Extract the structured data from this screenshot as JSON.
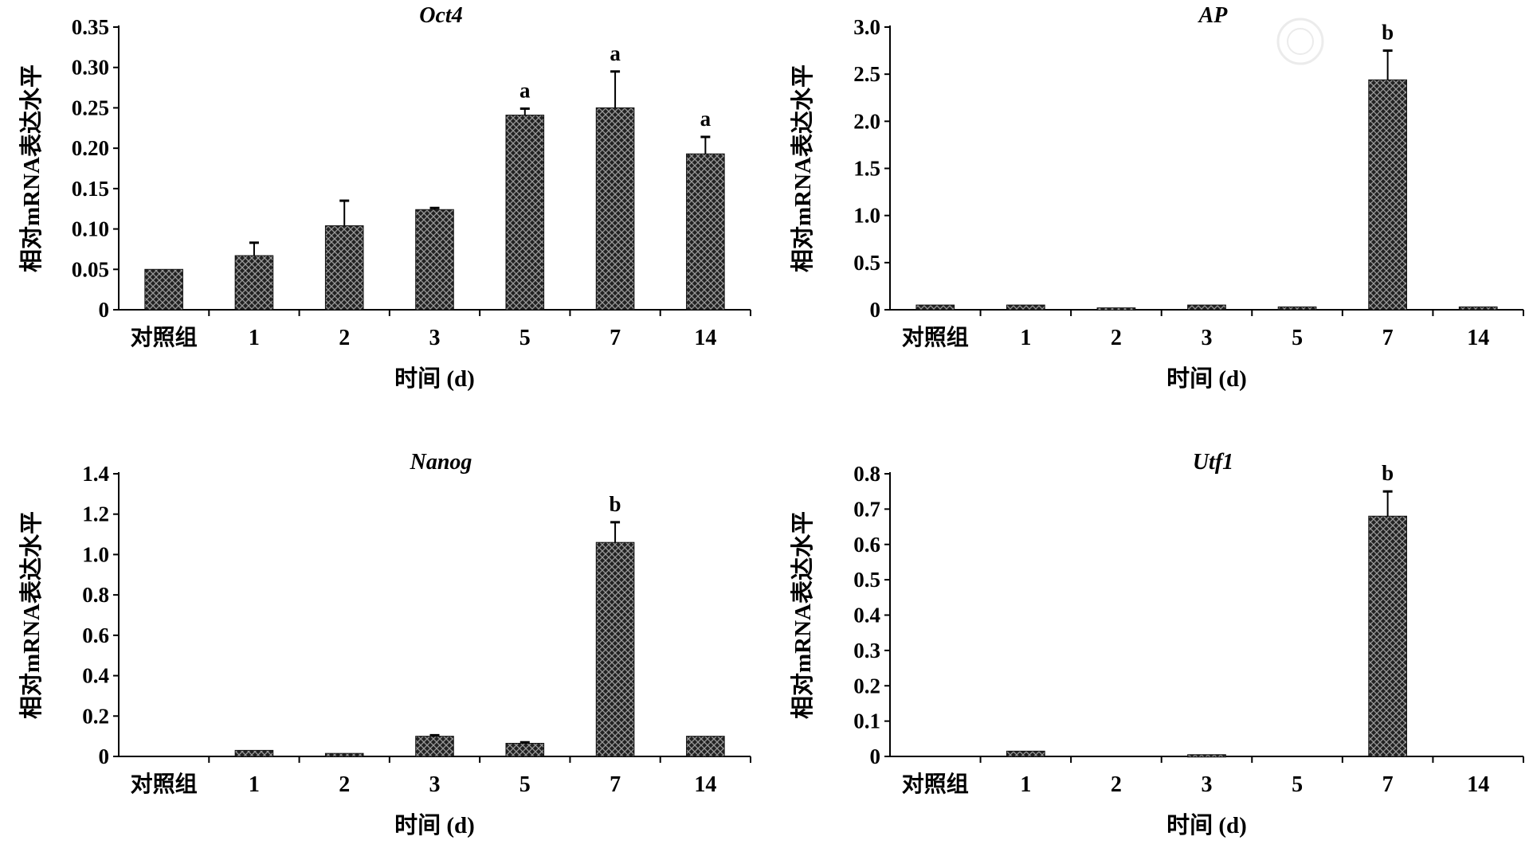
{
  "chart_data": [
    {
      "type": "bar",
      "title": "Oct4",
      "xlabel": "时间 (d)",
      "ylabel": "相对mRNA表达水平",
      "categories": [
        "对照组",
        "1",
        "2",
        "3",
        "5",
        "7",
        "14"
      ],
      "values": [
        0.05,
        0.067,
        0.104,
        0.124,
        0.241,
        0.25,
        0.193
      ],
      "error_upper": [
        0.05,
        0.083,
        0.135,
        0.126,
        0.249,
        0.295,
        0.214
      ],
      "significance": [
        "",
        "",
        "",
        "",
        "a",
        "a",
        "a"
      ],
      "ylim": [
        0,
        0.35
      ],
      "yticks": [
        "0",
        "0.05",
        "0.10",
        "0.15",
        "0.20",
        "0.25",
        "0.30",
        "0.35"
      ],
      "grid": false
    },
    {
      "type": "bar",
      "title": "AP",
      "xlabel": "时间 (d)",
      "ylabel": "相对mRNA表达水平",
      "categories": [
        "对照组",
        "1",
        "2",
        "3",
        "5",
        "7",
        "14"
      ],
      "values": [
        0.05,
        0.05,
        0.02,
        0.05,
        0.03,
        2.44,
        0.03
      ],
      "error_upper": [
        0.05,
        0.05,
        0.02,
        0.05,
        0.03,
        2.75,
        0.03
      ],
      "significance": [
        "",
        "",
        "",
        "",
        "",
        "b",
        ""
      ],
      "ylim": [
        0,
        3.0
      ],
      "yticks": [
        "0",
        "0.5",
        "1.0",
        "1.5",
        "2.0",
        "2.5",
        "3.0"
      ],
      "grid": false
    },
    {
      "type": "bar",
      "title": "Nanog",
      "xlabel": "时间 (d)",
      "ylabel": "相对mRNA表达水平",
      "categories": [
        "对照组",
        "1",
        "2",
        "3",
        "5",
        "7",
        "14"
      ],
      "values": [
        0,
        0.03,
        0.015,
        0.1,
        0.065,
        1.06,
        0.1
      ],
      "error_upper": [
        0,
        0.03,
        0.015,
        0.105,
        0.07,
        1.16,
        0.1
      ],
      "significance": [
        "",
        "",
        "",
        "",
        "",
        "b",
        ""
      ],
      "ylim": [
        0,
        1.4
      ],
      "yticks": [
        "0",
        "0.2",
        "0.4",
        "0.6",
        "0.8",
        "1.0",
        "1.2",
        "1.4"
      ],
      "grid": false
    },
    {
      "type": "bar",
      "title": "Utf1",
      "xlabel": "时间 (d)",
      "ylabel": "相对mRNA表达水平",
      "categories": [
        "对照组",
        "1",
        "2",
        "3",
        "5",
        "7",
        "14"
      ],
      "values": [
        0,
        0.015,
        0,
        0.005,
        0,
        0.68,
        0
      ],
      "error_upper": [
        0,
        0.015,
        0,
        0.005,
        0,
        0.75,
        0
      ],
      "significance": [
        "",
        "",
        "",
        "",
        "",
        "b",
        ""
      ],
      "ylim": [
        0,
        0.8
      ],
      "yticks": [
        "0",
        "0.1",
        "0.2",
        "0.3",
        "0.4",
        "0.5",
        "0.6",
        "0.7",
        "0.8"
      ],
      "grid": false
    }
  ]
}
